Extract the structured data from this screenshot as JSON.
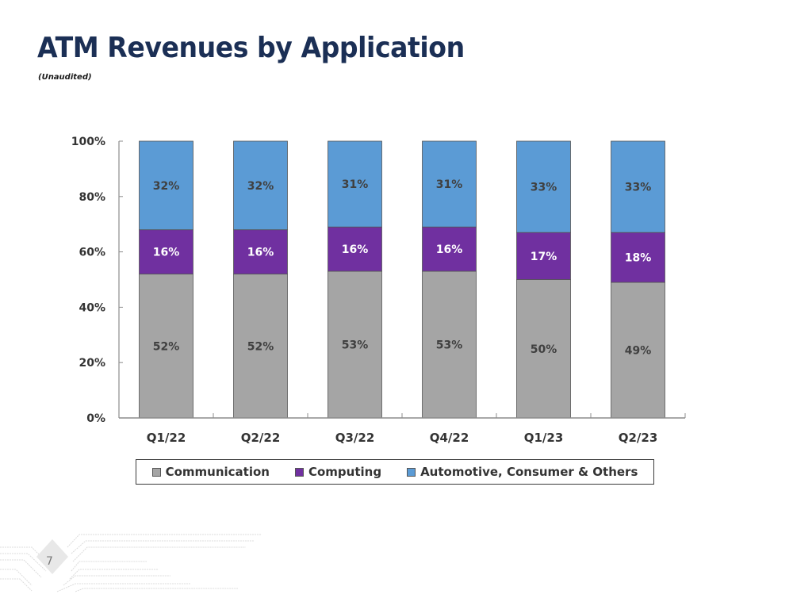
{
  "slide": {
    "title": "ATM Revenues by Application",
    "subtitle": "(Unaudited)",
    "page_number": "7"
  },
  "colors": {
    "communication": "#a5a5a5",
    "computing": "#7030a0",
    "automotive": "#5b9bd5",
    "title": "#1b2f55",
    "dark_label": "#404040",
    "light_label": "#ffffff"
  },
  "chart_data": {
    "type": "bar",
    "stacked": true,
    "percent": true,
    "title": "",
    "xlabel": "",
    "ylabel": "",
    "ylim": [
      0,
      100
    ],
    "yticks": [
      "0%",
      "20%",
      "40%",
      "60%",
      "80%",
      "100%"
    ],
    "ytick_values": [
      0,
      20,
      40,
      60,
      80,
      100
    ],
    "grid": false,
    "categories": [
      "Q1/22",
      "Q2/22",
      "Q3/22",
      "Q4/22",
      "Q1/23",
      "Q2/23"
    ],
    "series": [
      {
        "name": "Communication",
        "color": "#a5a5a5",
        "label_color": "#404040",
        "values": [
          52,
          52,
          53,
          53,
          50,
          49
        ]
      },
      {
        "name": "Computing",
        "color": "#7030a0",
        "label_color": "#ffffff",
        "values": [
          16,
          16,
          16,
          16,
          17,
          18
        ]
      },
      {
        "name": "Automotive, Consumer & Others",
        "color": "#5b9bd5",
        "label_color": "#404040",
        "values": [
          32,
          32,
          31,
          31,
          33,
          33
        ]
      }
    ],
    "legend": {
      "position": "bottom",
      "entries": [
        "Communication",
        "Computing",
        "Automotive, Consumer & Others"
      ]
    }
  }
}
